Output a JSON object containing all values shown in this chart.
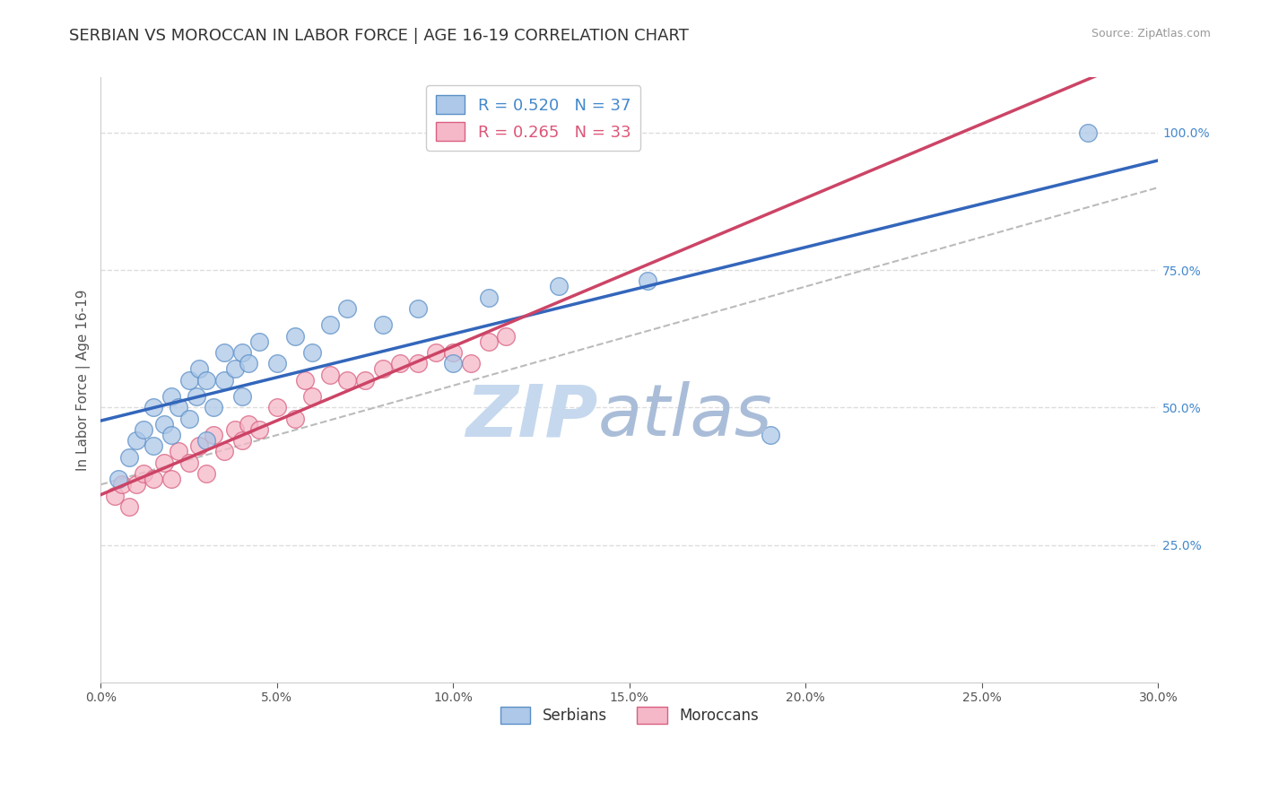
{
  "title": "SERBIAN VS MOROCCAN IN LABOR FORCE | AGE 16-19 CORRELATION CHART",
  "source_text": "Source: ZipAtlas.com",
  "ylabel": "In Labor Force | Age 16-19",
  "xlim": [
    0.0,
    0.3
  ],
  "ylim": [
    0.0,
    1.1
  ],
  "xticks": [
    0.0,
    0.05,
    0.1,
    0.15,
    0.2,
    0.25,
    0.3
  ],
  "xticklabels": [
    "0.0%",
    "5.0%",
    "10.0%",
    "15.0%",
    "20.0%",
    "25.0%",
    "30.0%"
  ],
  "yticks_right": [
    0.25,
    0.5,
    0.75,
    1.0
  ],
  "yticklabels_right": [
    "25.0%",
    "50.0%",
    "75.0%",
    "100.0%"
  ],
  "serbian_color": "#adc8e8",
  "serbian_edge": "#5b8fc7",
  "moroccan_color": "#f5b8c8",
  "moroccan_edge": "#d96080",
  "serbian_R": 0.52,
  "serbian_N": 37,
  "moroccan_R": 0.265,
  "moroccan_N": 33,
  "serbian_line_color": "#3366bb",
  "moroccan_line_color": "#cc4466",
  "ref_line_color": "#bbbbbb",
  "serbian_scatter_x": [
    0.005,
    0.008,
    0.01,
    0.012,
    0.015,
    0.015,
    0.018,
    0.02,
    0.02,
    0.022,
    0.025,
    0.025,
    0.027,
    0.028,
    0.03,
    0.03,
    0.032,
    0.035,
    0.035,
    0.038,
    0.04,
    0.04,
    0.042,
    0.045,
    0.05,
    0.055,
    0.06,
    0.065,
    0.07,
    0.08,
    0.09,
    0.1,
    0.11,
    0.13,
    0.155,
    0.19,
    0.28
  ],
  "serbian_scatter_y": [
    0.37,
    0.41,
    0.44,
    0.46,
    0.43,
    0.5,
    0.47,
    0.45,
    0.52,
    0.5,
    0.48,
    0.55,
    0.52,
    0.57,
    0.44,
    0.55,
    0.5,
    0.55,
    0.6,
    0.57,
    0.52,
    0.6,
    0.58,
    0.62,
    0.58,
    0.63,
    0.6,
    0.65,
    0.68,
    0.65,
    0.68,
    0.58,
    0.7,
    0.72,
    0.73,
    0.45,
    1.0
  ],
  "moroccan_scatter_x": [
    0.004,
    0.006,
    0.008,
    0.01,
    0.012,
    0.015,
    0.018,
    0.02,
    0.022,
    0.025,
    0.028,
    0.03,
    0.032,
    0.035,
    0.038,
    0.04,
    0.042,
    0.045,
    0.05,
    0.055,
    0.058,
    0.06,
    0.065,
    0.07,
    0.075,
    0.08,
    0.085,
    0.09,
    0.095,
    0.1,
    0.105,
    0.11,
    0.115
  ],
  "moroccan_scatter_y": [
    0.34,
    0.36,
    0.32,
    0.36,
    0.38,
    0.37,
    0.4,
    0.37,
    0.42,
    0.4,
    0.43,
    0.38,
    0.45,
    0.42,
    0.46,
    0.44,
    0.47,
    0.46,
    0.5,
    0.48,
    0.55,
    0.52,
    0.56,
    0.55,
    0.55,
    0.57,
    0.58,
    0.58,
    0.6,
    0.6,
    0.58,
    0.62,
    0.63
  ],
  "background_color": "#ffffff",
  "grid_color": "#dddddd",
  "watermark_zip": "ZIP",
  "watermark_atlas": "atlas",
  "watermark_color_zip": "#c5d8ee",
  "watermark_color_atlas": "#aabdd8",
  "title_fontsize": 13,
  "axis_label_fontsize": 11,
  "tick_fontsize": 10,
  "legend_fontsize": 13
}
